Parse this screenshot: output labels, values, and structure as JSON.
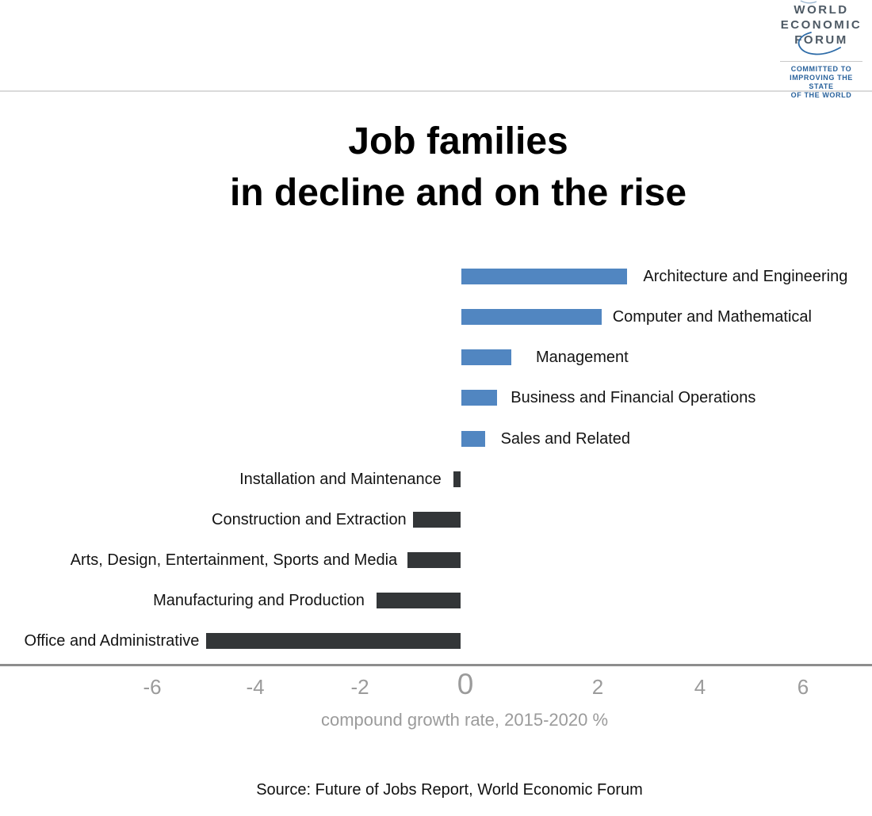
{
  "logo": {
    "name_lines": [
      "WORLD",
      "ECONOMIC",
      "FORUM"
    ],
    "tagline_lines": [
      "COMMITTED TO",
      "IMPROVING THE STATE",
      "OF THE WORLD"
    ],
    "name_color": "#4d5964",
    "accent_color": "#29629c"
  },
  "title": {
    "line1": "Job families",
    "line2": "in decline and on the rise"
  },
  "chart_data": {
    "type": "bar",
    "orientation": "horizontal",
    "title": "Job families in decline and on the rise",
    "xlabel": "compound growth rate, 2015-2020 %",
    "x_ticks": [
      -6,
      -4,
      -2,
      0,
      2,
      4,
      6
    ],
    "xlim": [
      -7,
      7.8
    ],
    "grid": false,
    "legend": false,
    "categories": [
      "Architecture and Engineering",
      "Computer and Mathematical",
      "Management",
      "Business and Financial Operations",
      "Sales and Related",
      "Installation and Maintenance",
      "Construction and Extraction",
      "Arts, Design, Entertainment, Sports and Media",
      "Manufacturing and Production",
      "Office and Administrative"
    ],
    "values": [
      3.21,
      2.71,
      0.97,
      0.7,
      0.46,
      -0.15,
      -0.93,
      -1.03,
      -1.63,
      -4.91
    ],
    "colors": {
      "positive_bar": "#5186c1",
      "negative_bar": "#333638",
      "axis_line": "#8d8d8d",
      "tick_text": "#9b9b9b"
    }
  },
  "source": "Source: Future of Jobs Report, World Economic Forum"
}
